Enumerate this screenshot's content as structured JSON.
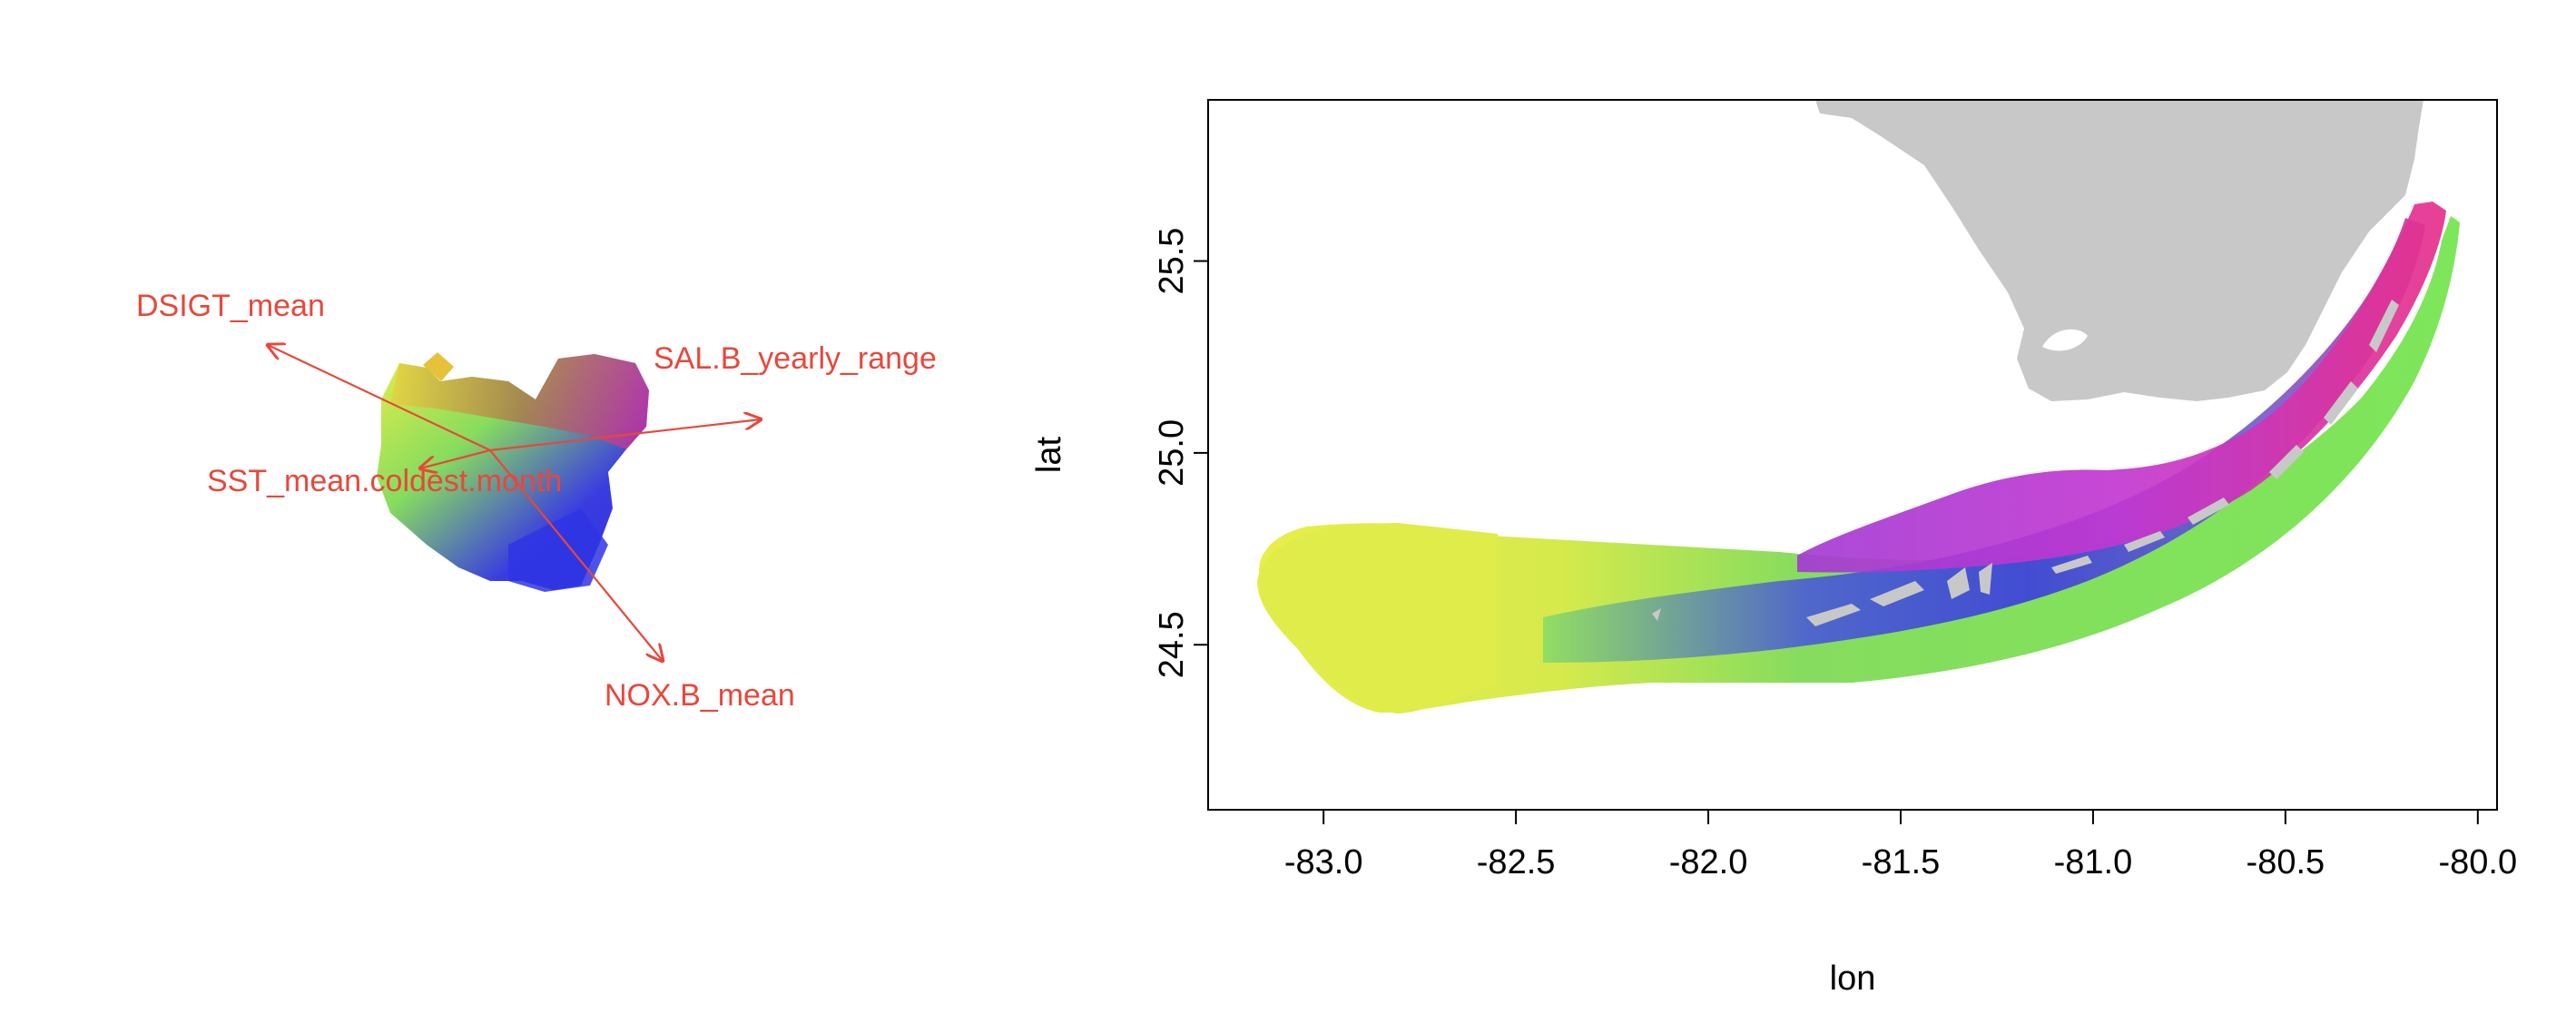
{
  "biplot": {
    "arrow_color": "#e8473a",
    "arrows": [
      {
        "id": "dsigt",
        "label": "DSIGT_mean"
      },
      {
        "id": "sal",
        "label": "SAL.B_yearly_range"
      },
      {
        "id": "sst",
        "label": "SST_mean.coldest.month"
      },
      {
        "id": "nox",
        "label": "NOX.B_mean"
      }
    ]
  },
  "map": {
    "xlabel": "lon",
    "ylabel": "lat",
    "xlim": [
      -83.3,
      -79.95
    ],
    "ylim": [
      24.07,
      25.92
    ],
    "x_ticks": [
      "-83.0",
      "-82.5",
      "-82.0",
      "-81.5",
      "-81.0",
      "-80.5",
      "-80.0"
    ],
    "y_ticks": [
      "24.5",
      "25.0",
      "25.5"
    ],
    "land_color": "#c8c8c8",
    "palette": [
      "#e8ee4a",
      "#86dc5e",
      "#3a3ce0",
      "#c238d0",
      "#e6308a"
    ],
    "grid": false
  }
}
